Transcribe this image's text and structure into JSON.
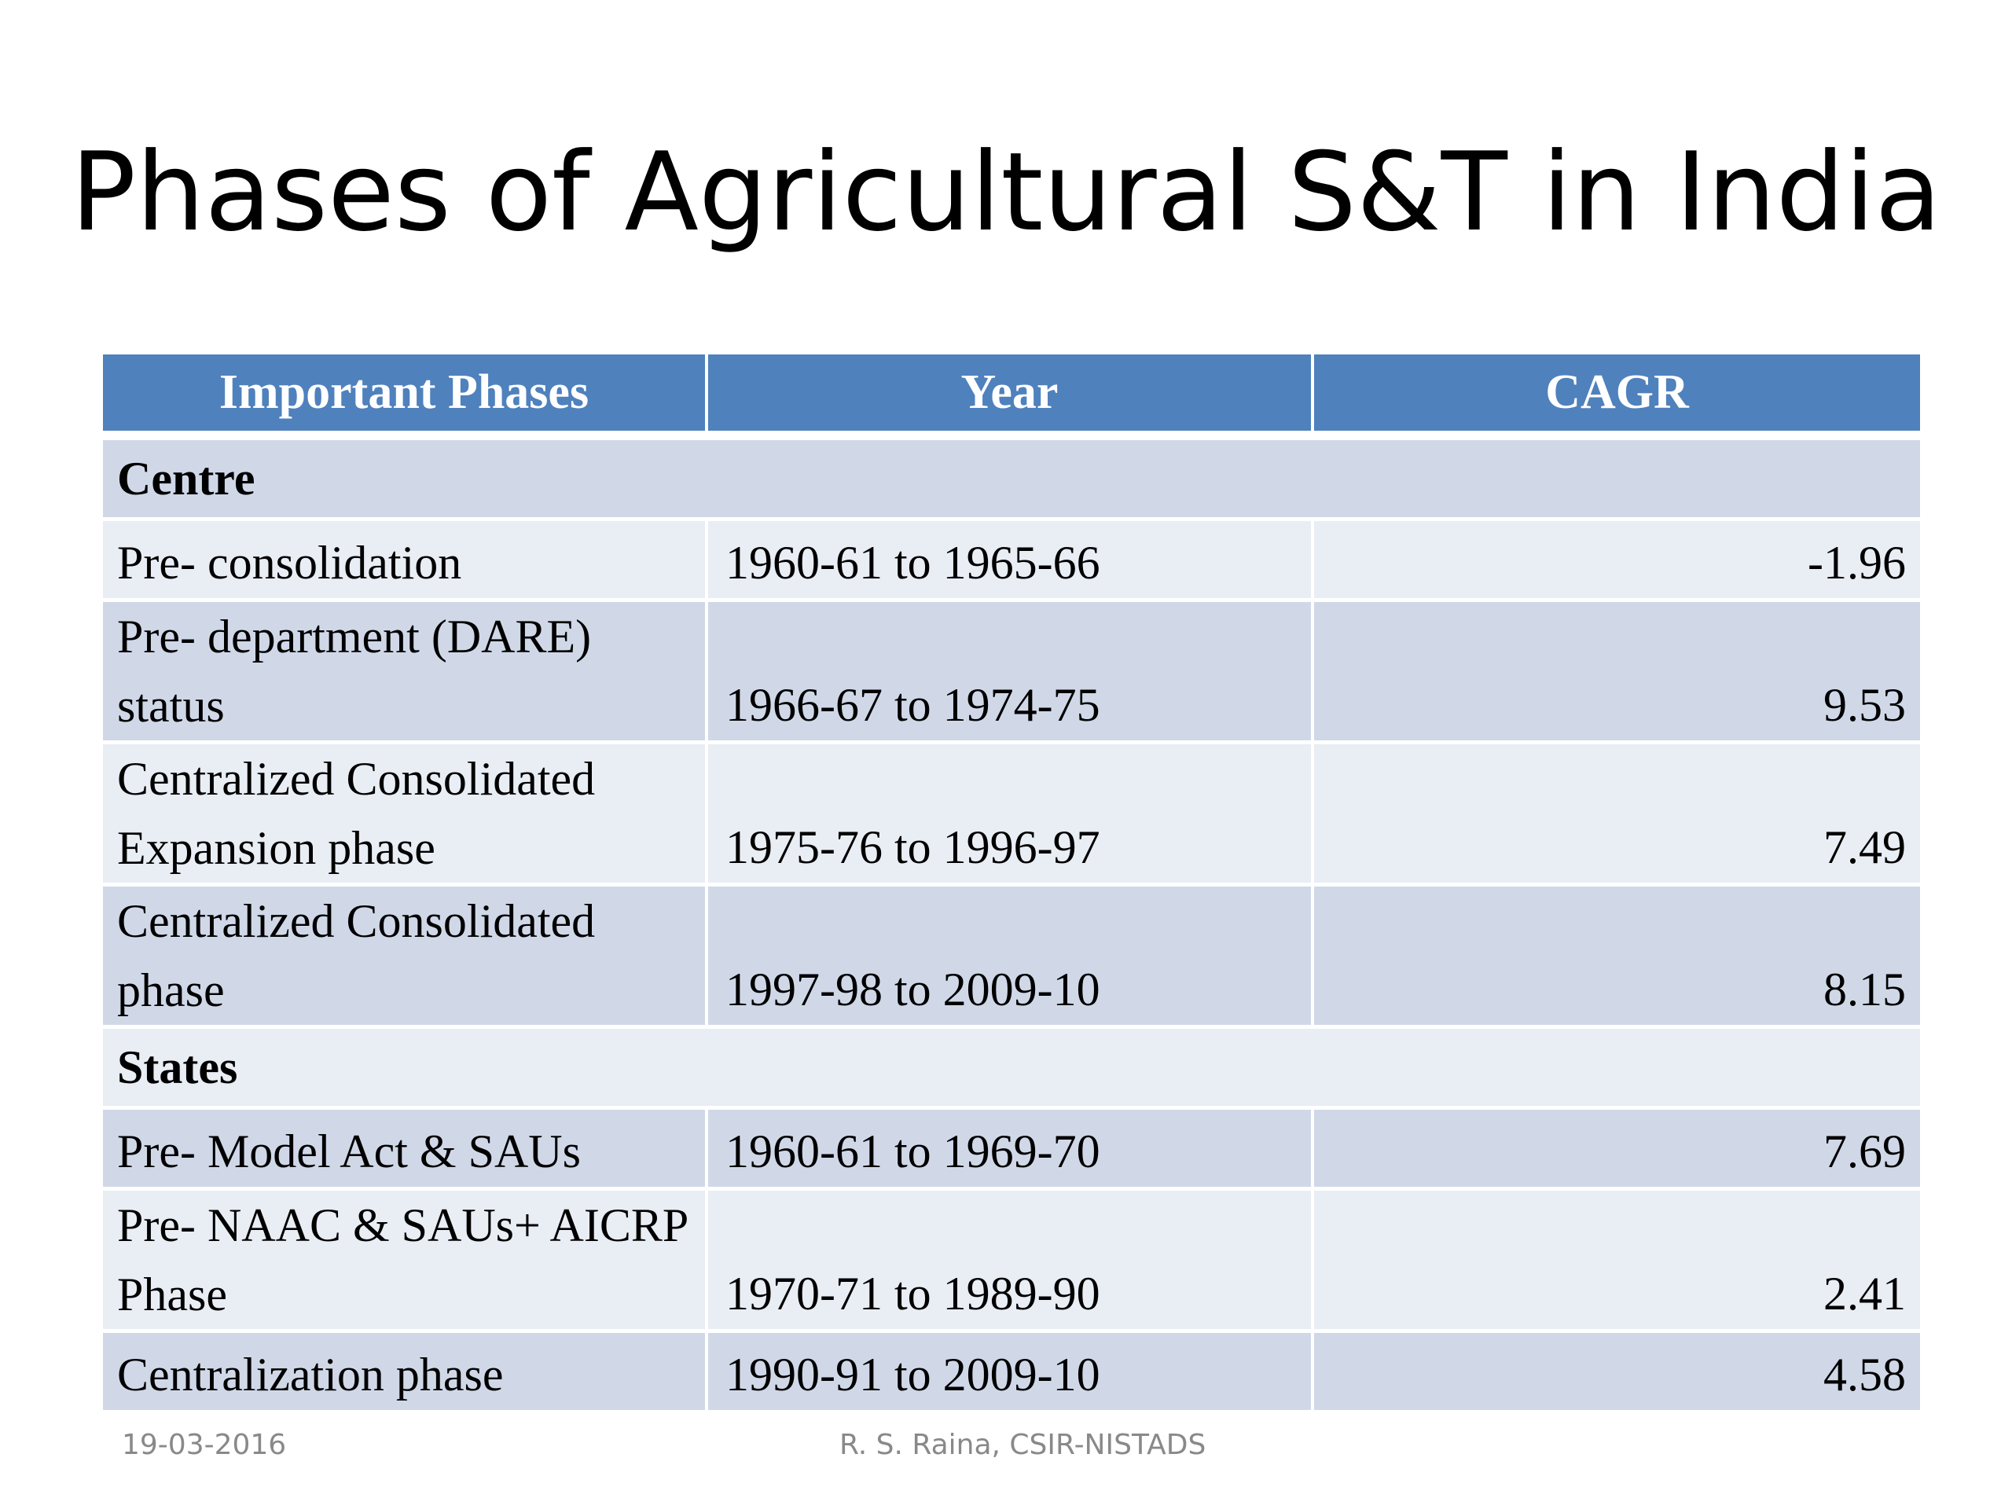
{
  "slide": {
    "title": "Phases of Agricultural S&T in India"
  },
  "table": {
    "headers": [
      "Important Phases",
      "Year",
      "CAGR"
    ],
    "sections": [
      {
        "name": "Centre",
        "rows": [
          {
            "phase": "Pre- consolidation",
            "year": "1960-61 to 1965-66",
            "cagr": "-1.96"
          },
          {
            "phase": "Pre- department (DARE) status",
            "year": "1966-67 to 1974-75",
            "cagr": "9.53"
          },
          {
            "phase": "Centralized Consolidated Expansion phase",
            "year": "1975-76 to 1996-97",
            "cagr": "7.49"
          },
          {
            "phase": "Centralized Consolidated phase",
            "year": "1997-98 to 2009-10",
            "cagr": "8.15"
          }
        ]
      },
      {
        "name": "States",
        "rows": [
          {
            "phase": "Pre- Model Act & SAUs",
            "year": "1960-61 to 1969-70",
            "cagr": "7.69"
          },
          {
            "phase": "Pre- NAAC & SAUs+ AICRP Phase",
            "year": "1970-71 to 1989-90",
            "cagr": "2.41"
          },
          {
            "phase": "Centralization phase",
            "year": "1990-91 to 2009-10",
            "cagr": "4.58"
          }
        ]
      }
    ]
  },
  "footer": {
    "date": "19-03-2016",
    "author": "R. S. Raina, CSIR-NISTADS"
  },
  "colors": {
    "header_fill": "#4f81bd",
    "row_dark": "#d0d8e8",
    "row_light": "#e9edf4",
    "footer_text": "#898989"
  }
}
